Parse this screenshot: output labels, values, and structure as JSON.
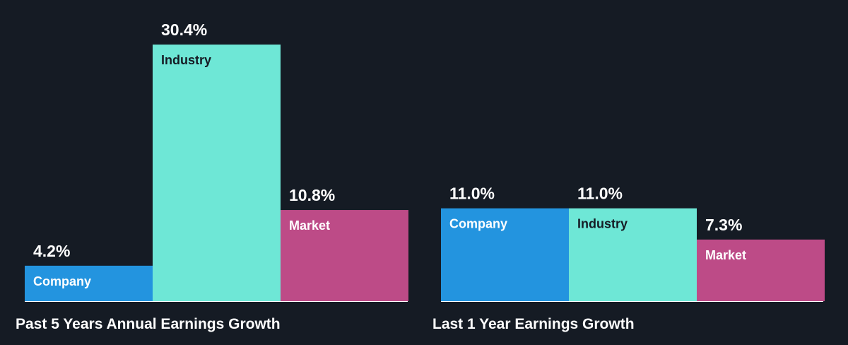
{
  "chart_data": [
    {
      "type": "bar",
      "title": "Past 5 Years Annual Earnings Growth",
      "categories": [
        "Company",
        "Industry",
        "Market"
      ],
      "values": [
        4.2,
        30.4,
        10.8
      ],
      "value_labels": [
        "4.2%",
        "30.4%",
        "10.8%"
      ],
      "colors": [
        "#2394df",
        "#6ee7d6",
        "#bd4b87"
      ],
      "label_colors": [
        "#ffffff",
        "#151b24",
        "#ffffff"
      ]
    },
    {
      "type": "bar",
      "title": "Last 1 Year Earnings Growth",
      "categories": [
        "Company",
        "Industry",
        "Market"
      ],
      "values": [
        11.0,
        11.0,
        7.3
      ],
      "value_labels": [
        "11.0%",
        "11.0%",
        "7.3%"
      ],
      "colors": [
        "#2394df",
        "#6ee7d6",
        "#bd4b87"
      ],
      "label_colors": [
        "#ffffff",
        "#151b24",
        "#ffffff"
      ]
    }
  ],
  "colors": {
    "background": "#151b24",
    "axis": "#ffffff"
  }
}
